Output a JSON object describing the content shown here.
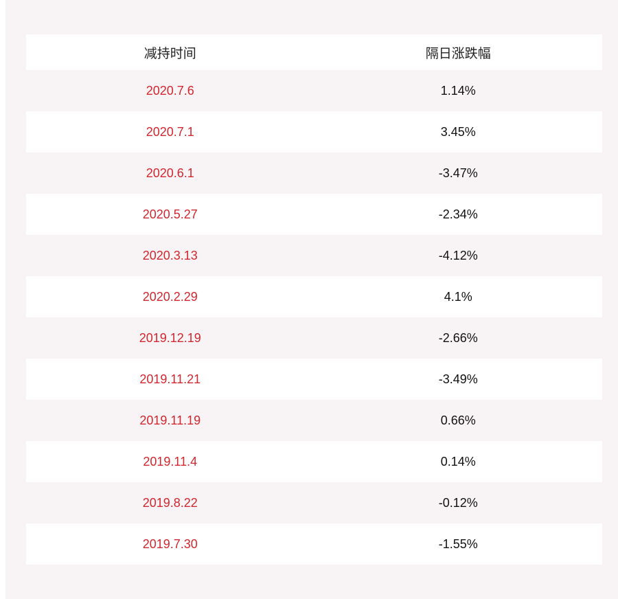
{
  "table": {
    "headers": [
      "减持时间",
      "隔日涨跌幅"
    ],
    "rows": [
      {
        "date": "2020.7.6",
        "change": "1.14%"
      },
      {
        "date": "2020.7.1",
        "change": "3.45%"
      },
      {
        "date": "2020.6.1",
        "change": "-3.47%"
      },
      {
        "date": "2020.5.27",
        "change": "-2.34%"
      },
      {
        "date": "2020.3.13",
        "change": "-4.12%"
      },
      {
        "date": "2020.2.29",
        "change": "4.1%"
      },
      {
        "date": "2019.12.19",
        "change": "-2.66%"
      },
      {
        "date": "2019.11.21",
        "change": "-3.49%"
      },
      {
        "date": "2019.11.19",
        "change": "0.66%"
      },
      {
        "date": "2019.11.4",
        "change": "0.14%"
      },
      {
        "date": "2019.8.22",
        "change": "-0.12%"
      },
      {
        "date": "2019.7.30",
        "change": "-1.55%"
      }
    ]
  },
  "colors": {
    "date_text": "#d3262f",
    "value_text": "#111111",
    "panel_background": "#f8f4f5",
    "row_background": "#ffffff"
  }
}
